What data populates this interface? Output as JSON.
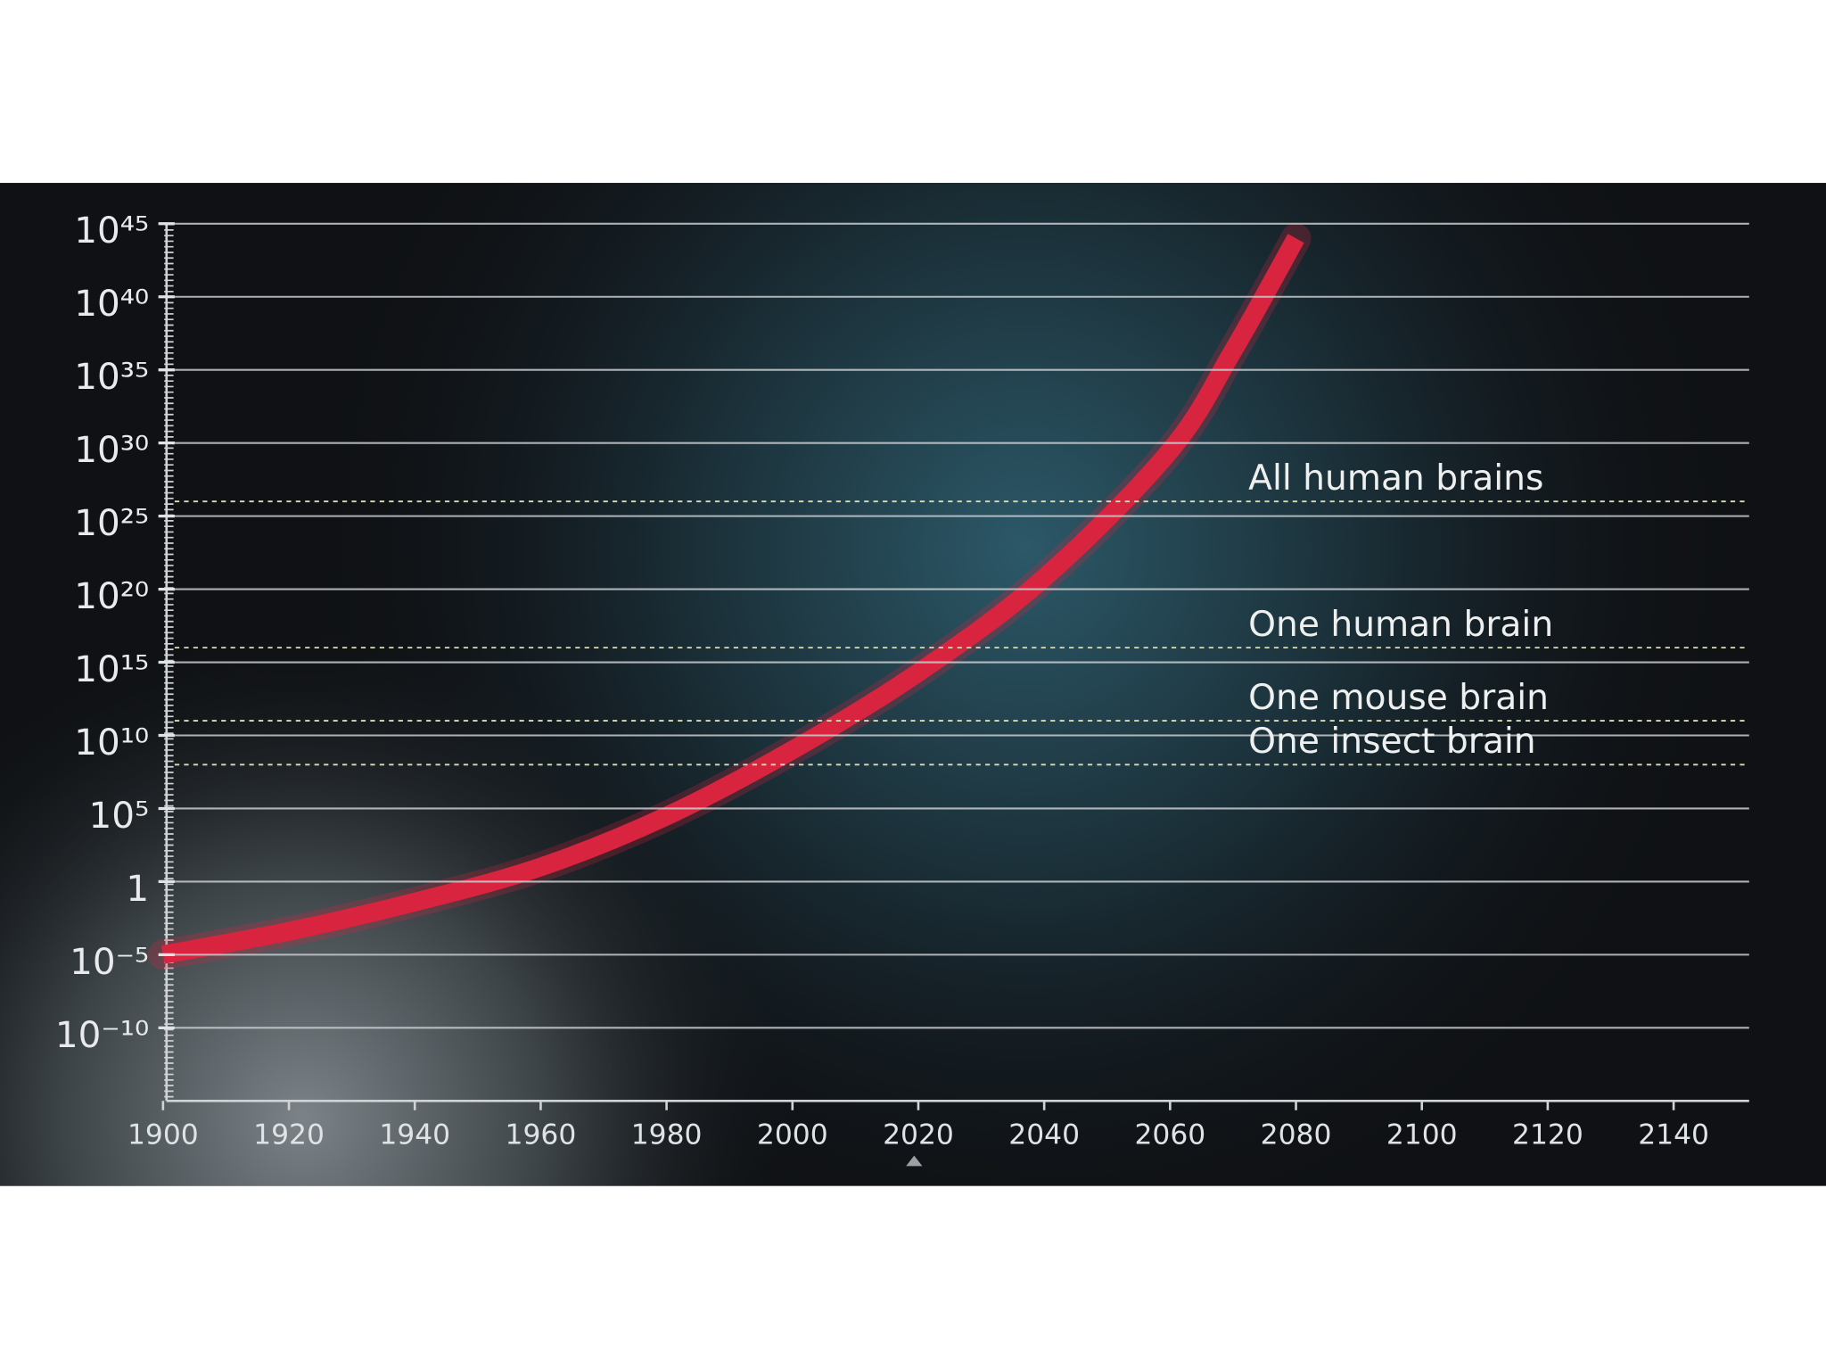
{
  "chart_data": {
    "type": "line",
    "x": [
      1900,
      1920,
      1940,
      1960,
      1980,
      2000,
      2020,
      2040,
      2060,
      2070,
      2080
    ],
    "series": [
      {
        "color": "#d9243f",
        "values": [
          1e-05,
          0.0004,
          0.04,
          10,
          30000.0,
          1000000000.0,
          200000000000000.0,
          6e+20,
          3e+29,
          2e+36,
          1e+44
        ]
      }
    ],
    "yscale": "log",
    "ylim": [
      1e-15,
      1e+45
    ],
    "yticks": [
      {
        "value": 1e+45,
        "label": "10⁴⁵"
      },
      {
        "value": 1e+40,
        "label": "10⁴⁰"
      },
      {
        "value": 1e+35,
        "label": "10³⁵"
      },
      {
        "value": 1e+30,
        "label": "10³⁰"
      },
      {
        "value": 1e+25,
        "label": "10²⁵"
      },
      {
        "value": 1e+20,
        "label": "10²⁰"
      },
      {
        "value": 1000000000000000.0,
        "label": "10¹⁵"
      },
      {
        "value": 10000000000.0,
        "label": "10¹⁰"
      },
      {
        "value": 100000.0,
        "label": "10⁵"
      },
      1,
      {
        "value": 1e-05,
        "label": "10⁻⁵"
      },
      {
        "value": 1e-10,
        "label": "10⁻¹⁰"
      }
    ],
    "xlim": [
      1900,
      2152
    ],
    "xticks": [
      1900,
      1920,
      1940,
      1960,
      1980,
      2000,
      2020,
      2040,
      2060,
      2080,
      2100,
      2120,
      2140
    ],
    "grid": true,
    "reference_lines": [
      {
        "label": "All human brains",
        "value": 1e+26
      },
      {
        "label": "One human brain",
        "value": 1e+16
      },
      {
        "label": "One mouse brain",
        "value": 100000000000.0
      },
      {
        "label": "One insect brain",
        "value": 100000000.0
      }
    ]
  }
}
